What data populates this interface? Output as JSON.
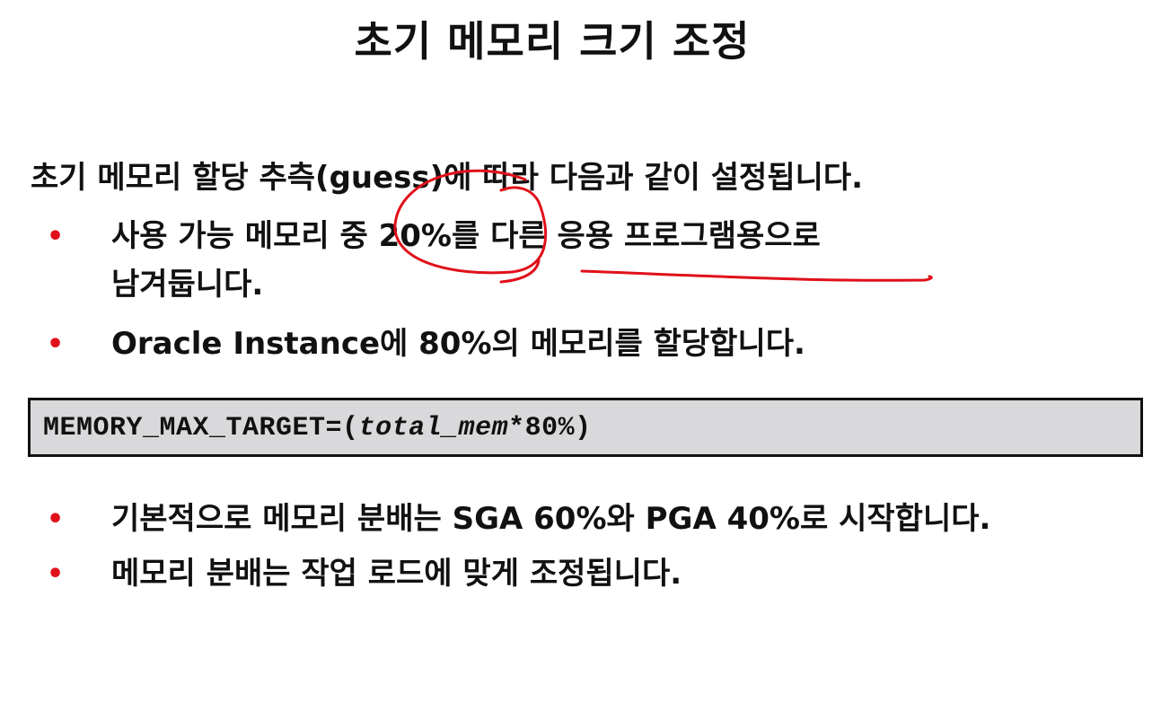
{
  "title": "초기 메모리 크기 조정",
  "intro": "초기 메모리 할당 추측(guess)에 따라 다음과 같이 설정됩니다.",
  "bullets_top": [
    {
      "line1": "사용 가능 메모리 중 20%를 다른 응용 프로그램용으로",
      "line2": "남겨둡니다."
    },
    {
      "line1": "Oracle Instance에 80%의 메모리를 할당합니다."
    }
  ],
  "code": {
    "prefix": "MEMORY_MAX_TARGET=(",
    "italic": "total_mem",
    "suffix": "*80%)"
  },
  "bullets_bottom": [
    "기본적으로 메모리 분배는 SGA 60%와 PGA 40%로 시작합니다.",
    "메모리 분배는 작업 로드에 맞게 조정됩니다."
  ],
  "bullet_glyph": "•",
  "colors": {
    "bullet": "#e0101a",
    "annotation": "#e0101a",
    "code_bg": "#d9d9db"
  }
}
